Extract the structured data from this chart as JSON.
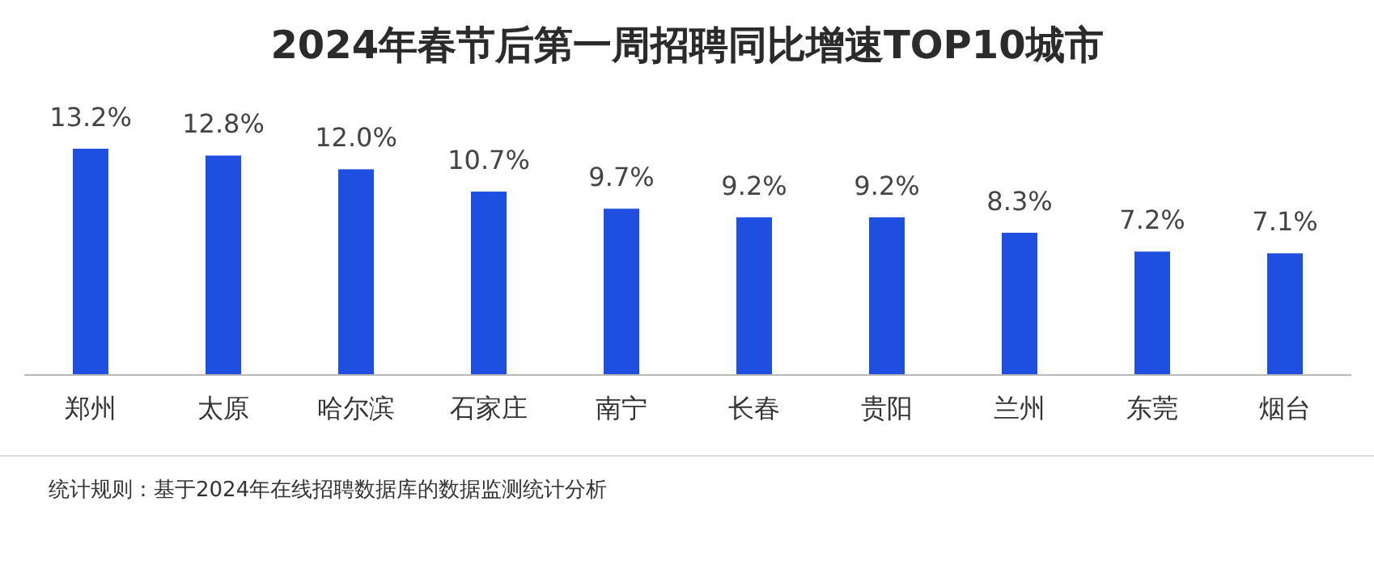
{
  "chart_data": {
    "type": "bar",
    "title": "2024年春节后第一周招聘同比增速TOP10城市",
    "categories": [
      "郑州",
      "太原",
      "哈尔滨",
      "石家庄",
      "南宁",
      "长春",
      "贵阳",
      "兰州",
      "东莞",
      "烟台"
    ],
    "values": [
      13.2,
      12.8,
      12.0,
      10.7,
      9.7,
      9.2,
      9.2,
      8.3,
      7.2,
      7.1
    ],
    "value_labels": [
      "13.2%",
      "12.8%",
      "12.0%",
      "10.7%",
      "9.7%",
      "9.2%",
      "9.2%",
      "8.3%",
      "7.2%",
      "7.1%"
    ],
    "color": "#1f4fe0",
    "annotations": [
      "统计规则：基于2024年在线招聘数据库的数据监测统计分析"
    ]
  }
}
